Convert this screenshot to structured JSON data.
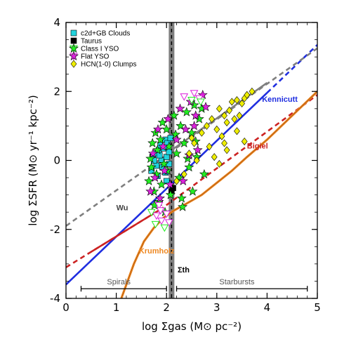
{
  "chart_data": {
    "type": "scatter",
    "xlabel": "log Σgas (M⊙ pc⁻²)",
    "ylabel": "log ΣSFR (M⊙ yr⁻¹ kpc⁻²)",
    "xlim": [
      0,
      5
    ],
    "ylim": [
      -4,
      4
    ],
    "x_ticks": [
      0,
      1,
      2,
      3,
      4,
      5
    ],
    "y_ticks": [
      -4,
      -2,
      0,
      2,
      4
    ],
    "grid": false,
    "legend_position": "top-left",
    "threshold": {
      "x": 2.1,
      "label": "Σth",
      "color": "#7f7f7f"
    },
    "legend": [
      {
        "name": "c2d+GB Clouds",
        "marker": "square",
        "color": "#22d3dd"
      },
      {
        "name": "Taurus",
        "marker": "square",
        "color": "#000000"
      },
      {
        "name": "Class I YSO",
        "marker": "star",
        "color": "#22ee22"
      },
      {
        "name": "Flat YSO",
        "marker": "star",
        "color": "#dd22dd"
      },
      {
        "name": "HCN(1-0) Clumps",
        "marker": "diamond",
        "color": "#eeee00"
      }
    ],
    "lines": [
      {
        "name": "Kennicutt",
        "color": "#1f2ee0",
        "style": "solid",
        "label_color": "#1f2ee0",
        "label_at": [
          3.9,
          1.7
        ],
        "x": [
          0,
          4.0
        ],
        "y": [
          -3.6,
          1.96
        ]
      },
      {
        "name": "Kennicutt",
        "color": "#1f2ee0",
        "style": "dashed",
        "x": [
          4.0,
          5.0
        ],
        "y": [
          1.96,
          3.35
        ]
      },
      {
        "name": "Bigiel",
        "color": "#cc2222",
        "style": "solid",
        "label_color": "#cc2222",
        "label_at": [
          3.6,
          0.35
        ],
        "x": [
          0.5,
          1.9
        ],
        "y": [
          -2.65,
          -1.4
        ]
      },
      {
        "name": "Bigiel",
        "color": "#cc2222",
        "style": "dashed",
        "x": [
          0,
          0.5,
          1.9,
          5.0
        ],
        "y": [
          -3.1,
          -2.65,
          -1.4,
          1.9
        ]
      },
      {
        "name": "Wu",
        "color": "#7f7f7f",
        "style": "dashed",
        "label_color": "#444444",
        "label_at": [
          1.0,
          -1.45
        ],
        "x": [
          0,
          5.0
        ],
        "y": [
          -1.9,
          3.25
        ]
      },
      {
        "name": "Wu",
        "color": "#7f7f7f",
        "style": "solid",
        "x": [
          2.1,
          4.0
        ],
        "y": [
          0.3,
          2.25
        ]
      },
      {
        "name": "Krumholz",
        "color": "#ee8822",
        "style": "solid",
        "label_color": "#ee8822",
        "label_at": [
          1.45,
          -2.7
        ],
        "x": [
          1.1,
          1.35,
          1.55,
          1.75,
          1.95,
          2.15,
          2.4,
          2.7,
          3.0,
          3.3,
          3.6,
          4.0,
          4.5,
          5.0
        ],
        "y": [
          -4.0,
          -3.0,
          -2.35,
          -1.95,
          -1.65,
          -1.45,
          -1.25,
          -1.0,
          -0.65,
          -0.3,
          0.1,
          0.6,
          1.3,
          2.0
        ]
      }
    ],
    "threshold_label_at": [
      2.22,
      -3.25
    ],
    "ranges": [
      {
        "name": "Spirals",
        "x": [
          0.3,
          2.0
        ],
        "y": -3.72,
        "label_x": 1.05
      },
      {
        "name": "Starbursts",
        "x": [
          2.2,
          4.8
        ],
        "y": -3.72,
        "label_x": 3.4
      }
    ],
    "series": [
      {
        "name": "c2d+GB Clouds",
        "marker": "square",
        "color": "#22d3dd",
        "points": [
          [
            1.7,
            -0.3
          ],
          [
            1.72,
            0.1
          ],
          [
            1.78,
            0.2
          ],
          [
            1.8,
            -0.15
          ],
          [
            1.85,
            0.3
          ],
          [
            1.88,
            0.45
          ],
          [
            1.9,
            0.0
          ],
          [
            1.95,
            0.35
          ],
          [
            1.98,
            0.6
          ],
          [
            2.0,
            0.1
          ],
          [
            2.02,
            0.5
          ],
          [
            2.05,
            0.25
          ],
          [
            2.08,
            0.65
          ],
          [
            1.92,
            -0.2
          ],
          [
            1.82,
            -0.45
          ],
          [
            2.0,
            -0.6
          ],
          [
            1.98,
            -0.35
          ],
          [
            2.05,
            -0.1
          ],
          [
            1.75,
            0.0
          ],
          [
            1.86,
            0.15
          ]
        ]
      },
      {
        "name": "Taurus",
        "marker": "square",
        "color": "#000000",
        "points": [
          [
            2.13,
            -0.8
          ],
          [
            2.1,
            -0.9
          ]
        ]
      },
      {
        "name": "Class I YSO",
        "marker": "star",
        "color": "#22ee22",
        "points": [
          [
            1.65,
            -0.6
          ],
          [
            1.7,
            -0.2
          ],
          [
            1.72,
            0.5
          ],
          [
            1.75,
            -0.9
          ],
          [
            1.78,
            0.8
          ],
          [
            1.8,
            -0.4
          ],
          [
            1.82,
            0.3
          ],
          [
            1.85,
            -1.2
          ],
          [
            1.88,
            0.6
          ],
          [
            1.9,
            -0.7
          ],
          [
            1.92,
            1.1
          ],
          [
            1.95,
            -0.1
          ],
          [
            1.97,
            -1.5
          ],
          [
            2.0,
            0.9
          ],
          [
            2.02,
            -0.3
          ],
          [
            2.05,
            0.4
          ],
          [
            2.08,
            -1.0
          ],
          [
            2.15,
            1.3
          ],
          [
            2.2,
            0.2
          ],
          [
            2.25,
            -0.5
          ],
          [
            2.28,
            1.0
          ],
          [
            2.3,
            -1.1
          ],
          [
            2.35,
            0.5
          ],
          [
            2.4,
            1.4
          ],
          [
            2.45,
            -0.2
          ],
          [
            2.5,
            0.8
          ],
          [
            2.55,
            1.6
          ],
          [
            2.6,
            0.1
          ],
          [
            2.65,
            1.2
          ],
          [
            2.7,
            1.5
          ],
          [
            2.75,
            -0.4
          ],
          [
            2.52,
            -0.9
          ],
          [
            2.32,
            -1.35
          ],
          [
            2.42,
            0.05
          ],
          [
            1.68,
            0.05
          ],
          [
            1.76,
            -1.3
          ],
          [
            2.58,
            0.55
          ],
          [
            2.18,
            0.75
          ]
        ]
      },
      {
        "name": "Flat YSO",
        "marker": "star",
        "color": "#dd22dd",
        "points": [
          [
            1.68,
            -0.9
          ],
          [
            1.73,
            0.2
          ],
          [
            1.77,
            -0.5
          ],
          [
            1.83,
            0.9
          ],
          [
            1.87,
            -1.1
          ],
          [
            1.93,
            0.4
          ],
          [
            1.96,
            -0.3
          ],
          [
            2.03,
            1.2
          ],
          [
            2.07,
            -0.7
          ],
          [
            2.2,
            0.6
          ],
          [
            2.27,
            1.5
          ],
          [
            2.33,
            -0.6
          ],
          [
            2.38,
            0.9
          ],
          [
            2.48,
            1.7
          ],
          [
            2.58,
            1.3
          ],
          [
            2.62,
            0.3
          ],
          [
            2.72,
            1.9
          ],
          [
            2.78,
            1.55
          ],
          [
            2.45,
            0.15
          ],
          [
            2.55,
            1.0
          ]
        ]
      },
      {
        "name": "Flat YSO (upper limits)",
        "marker": "triangle-down",
        "color": "#dd22dd",
        "points": [
          [
            1.8,
            -1.6
          ],
          [
            1.85,
            -1.3
          ],
          [
            2.0,
            -1.55
          ],
          [
            2.05,
            -1.8
          ],
          [
            1.9,
            -1.75
          ],
          [
            2.35,
            1.85
          ],
          [
            2.55,
            1.95
          ],
          [
            2.65,
            1.8
          ],
          [
            1.88,
            -1.45
          ]
        ]
      },
      {
        "name": "Class I YSO (upper limits)",
        "marker": "triangle-down",
        "color": "#22ee22",
        "points": [
          [
            1.78,
            -1.85
          ],
          [
            1.96,
            -1.95
          ],
          [
            2.5,
            1.75
          ],
          [
            2.68,
            1.7
          ],
          [
            1.7,
            -1.5
          ]
        ]
      },
      {
        "name": "HCN(1-0) Clumps",
        "marker": "diamond",
        "color": "#eeee00",
        "points": [
          [
            2.2,
            -0.6
          ],
          [
            2.35,
            -0.4
          ],
          [
            2.45,
            0.2
          ],
          [
            2.55,
            0.5
          ],
          [
            2.6,
            0.0
          ],
          [
            2.7,
            0.8
          ],
          [
            2.8,
            1.0
          ],
          [
            2.85,
            0.4
          ],
          [
            2.9,
            1.2
          ],
          [
            3.0,
            0.9
          ],
          [
            3.05,
            1.5
          ],
          [
            3.1,
            0.7
          ],
          [
            3.15,
            1.3
          ],
          [
            3.2,
            1.1
          ],
          [
            3.25,
            1.45
          ],
          [
            3.3,
            1.7
          ],
          [
            3.35,
            1.2
          ],
          [
            3.4,
            1.75
          ],
          [
            3.5,
            1.65
          ],
          [
            3.55,
            1.8
          ],
          [
            3.6,
            1.9
          ],
          [
            3.7,
            2.0
          ],
          [
            3.2,
            0.3
          ],
          [
            3.4,
            0.85
          ],
          [
            3.55,
            0.55
          ],
          [
            2.95,
            0.1
          ],
          [
            3.05,
            -0.1
          ],
          [
            3.15,
            0.5
          ],
          [
            2.5,
            0.65
          ],
          [
            3.45,
            1.3
          ]
        ]
      }
    ]
  }
}
